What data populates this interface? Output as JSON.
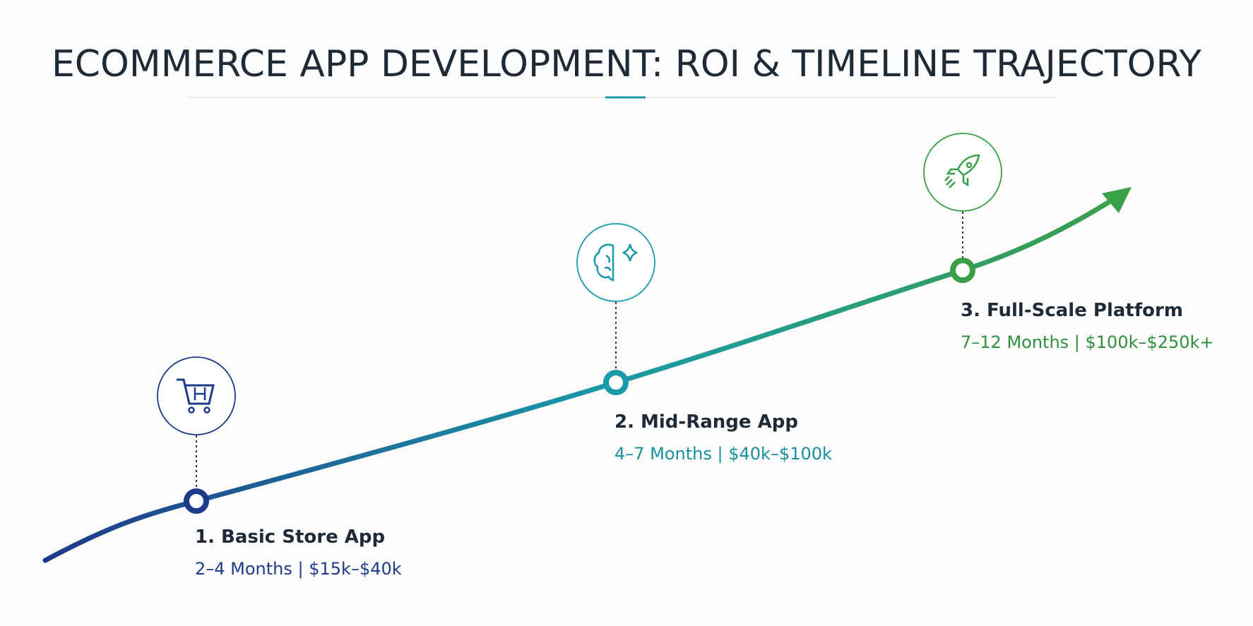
{
  "header": {
    "title": "ECOMMERCE APP DEVELOPMENT: ROI & TIMELINE TRAJECTORY"
  },
  "milestones": [
    {
      "title": "1. Basic Store App",
      "detail": "2–4 Months | $15k–$40k"
    },
    {
      "title": "2. Mid-Range App",
      "detail": "4–7 Months | $40k–$100k"
    },
    {
      "title": "3. Full-Scale Platform",
      "detail": "7–12 Months | $100k–$250k+"
    }
  ]
}
